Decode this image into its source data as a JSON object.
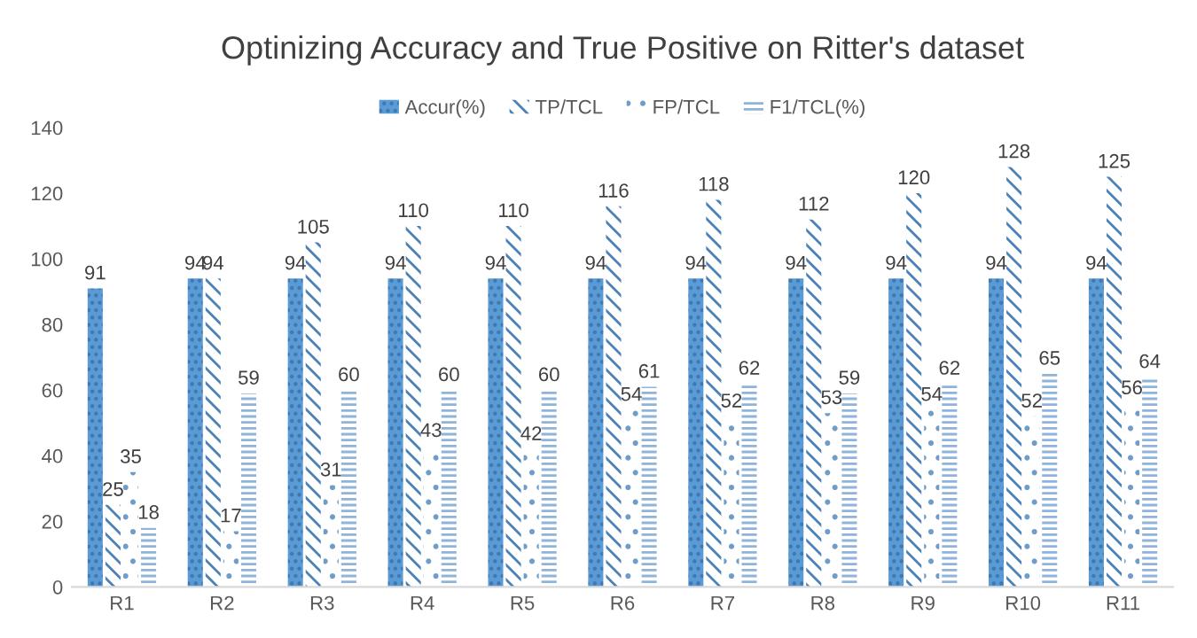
{
  "chart_data": {
    "type": "bar",
    "title": "Optinizing Accuracy and True Positive on Ritter's dataset",
    "categories": [
      "R1",
      "R2",
      "R3",
      "R4",
      "R5",
      "R6",
      "R7",
      "R8",
      "R9",
      "R10",
      "R11"
    ],
    "series": [
      {
        "name": "Accur(%)",
        "color": "#5b9bd5",
        "values": [
          91,
          94,
          94,
          94,
          94,
          94,
          94,
          94,
          94,
          94,
          94
        ]
      },
      {
        "name": "TP/TCL",
        "color": "#4a82b8",
        "values": [
          25,
          94,
          105,
          110,
          110,
          116,
          118,
          112,
          120,
          128,
          125
        ]
      },
      {
        "name": "FP/TCL",
        "color": "#6f9cc8",
        "values": [
          35,
          17,
          31,
          43,
          42,
          54,
          52,
          53,
          54,
          52,
          56
        ]
      },
      {
        "name": "F1/TCL(%)",
        "color": "#8fb3d9",
        "values": [
          18,
          59,
          60,
          60,
          60,
          61,
          62,
          59,
          62,
          65,
          64
        ]
      }
    ],
    "ylim": [
      0,
      140
    ],
    "yticks": [
      0,
      20,
      40,
      60,
      80,
      100,
      120,
      140
    ],
    "data_labels": true,
    "legend": "top",
    "grid": false
  }
}
